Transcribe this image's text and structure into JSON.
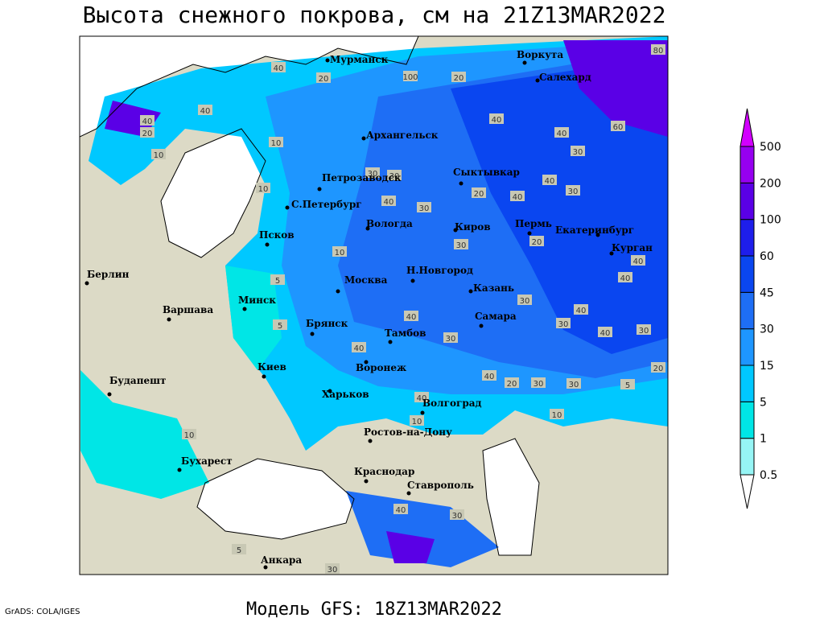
{
  "title": "Высота снежного покрова, см на 21Z13MAR2022",
  "subtitle": "Модель GFS: 18Z13MAR2022",
  "credit": "GrADS: COLA/IGES",
  "cities": [
    "Мурманск",
    "Воркута",
    "Салехард",
    "Архангельск",
    "Петрозаводск",
    "Сыктывкар",
    "С.Петербург",
    "Вологда",
    "Киров",
    "Пермь",
    "Екатеринбург",
    "Курган",
    "Псков",
    "Н.Новгород",
    "Казань",
    "Москва",
    "Берлин",
    "Варшава",
    "Минск",
    "Брянск",
    "Тамбов",
    "Самара",
    "Киев",
    "Воронеж",
    "Будапешт",
    "Харьков",
    "Волгоград",
    "Ростов-на-Дону",
    "Бухарест",
    "Краснодар",
    "Ставрополь",
    "Анкара"
  ],
  "contour_labels": [
    80,
    40,
    20,
    100,
    20,
    60,
    40,
    40,
    30,
    40,
    20,
    10,
    40,
    10,
    30,
    30,
    40,
    30,
    20,
    40,
    40,
    30,
    10,
    10,
    30,
    20,
    40,
    40,
    30,
    40,
    30,
    40,
    30,
    40,
    40,
    30,
    40,
    20,
    30,
    30,
    5,
    20,
    40,
    10,
    10,
    5,
    5,
    10,
    40,
    30,
    5,
    30
  ],
  "colorbar": {
    "levels": [
      0.5,
      1,
      5,
      15,
      30,
      45,
      60,
      100,
      200,
      500
    ],
    "colors": [
      "#96f5f5",
      "#00e6e6",
      "#00c8ff",
      "#1e96ff",
      "#1e6ef5",
      "#0a46f0",
      "#1e1eeb",
      "#5a00e6",
      "#9600f0",
      "#d200ff"
    ]
  }
}
